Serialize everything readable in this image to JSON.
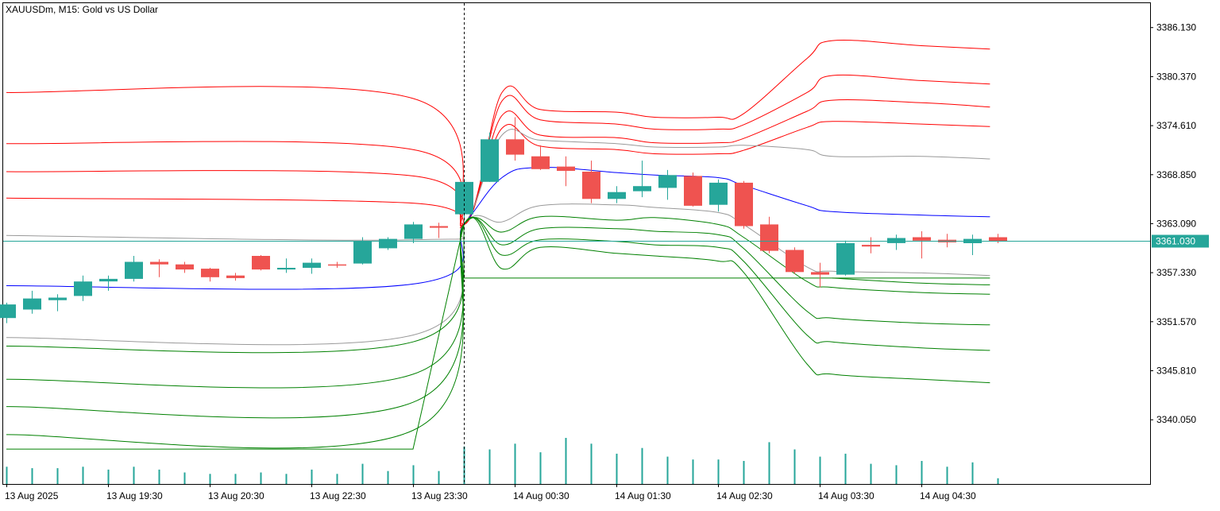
{
  "header": {
    "title": "XAUUSDm, M15:  Gold vs US Dollar"
  },
  "colors": {
    "up": "#26a69a",
    "down": "#ef5350",
    "frame": "#000000",
    "upper_band": "#ff0000",
    "middle_band": "#999999",
    "basis": "#0000ff",
    "lower_band": "#008000",
    "price_line": "#26a69a",
    "volume": "#26a69a",
    "price_label_bg": "#26a69a",
    "price_label_text": "#ffffff"
  },
  "chart_data": {
    "type": "candlestick",
    "symbol": "XAUUSDm",
    "timeframe": "M15",
    "description": "Gold vs US Dollar",
    "y_axis": {
      "ticks": [
        "3386.130",
        "3380.370",
        "3374.610",
        "3368.850",
        "3363.090",
        "3357.330",
        "3351.570",
        "3345.810",
        "3340.050"
      ],
      "range": [
        3332.5,
        3389.0
      ]
    },
    "x_axis": {
      "labels": [
        {
          "text": "13 Aug 2025",
          "index": 0
        },
        {
          "text": "13 Aug 19:30",
          "index": 4
        },
        {
          "text": "13 Aug 20:30",
          "index": 8
        },
        {
          "text": "13 Aug 22:30",
          "index": 12
        },
        {
          "text": "13 Aug 23:30",
          "index": 16
        },
        {
          "text": "14 Aug 00:30",
          "index": 20
        },
        {
          "text": "14 Aug 01:30",
          "index": 24
        },
        {
          "text": "14 Aug 02:30",
          "index": 28
        },
        {
          "text": "14 Aug 03:30",
          "index": 32
        },
        {
          "text": "14 Aug 04:30",
          "index": 36
        }
      ]
    },
    "current_price": "3361.030",
    "current_price_value": 3361.03,
    "vertical_marker_index": 18,
    "candles": [
      {
        "o": 3352.0,
        "h": 3353.8,
        "l": 3351.4,
        "c": 3353.6
      },
      {
        "o": 3353.0,
        "h": 3355.2,
        "l": 3352.5,
        "c": 3354.3
      },
      {
        "o": 3354.1,
        "h": 3354.8,
        "l": 3352.8,
        "c": 3354.4
      },
      {
        "o": 3354.6,
        "h": 3357.0,
        "l": 3354.0,
        "c": 3356.3
      },
      {
        "o": 3356.3,
        "h": 3357.0,
        "l": 3355.2,
        "c": 3356.6
      },
      {
        "o": 3356.6,
        "h": 3359.3,
        "l": 3356.3,
        "c": 3358.6
      },
      {
        "o": 3358.6,
        "h": 3358.9,
        "l": 3356.8,
        "c": 3358.3
      },
      {
        "o": 3358.3,
        "h": 3358.6,
        "l": 3357.3,
        "c": 3357.7
      },
      {
        "o": 3357.8,
        "h": 3357.9,
        "l": 3356.3,
        "c": 3356.8
      },
      {
        "o": 3357.0,
        "h": 3357.3,
        "l": 3356.4,
        "c": 3356.7
      },
      {
        "o": 3359.3,
        "h": 3359.4,
        "l": 3357.6,
        "c": 3357.7
      },
      {
        "o": 3357.7,
        "h": 3359.0,
        "l": 3357.3,
        "c": 3357.9
      },
      {
        "o": 3357.9,
        "h": 3359.0,
        "l": 3357.2,
        "c": 3358.5
      },
      {
        "o": 3358.3,
        "h": 3358.6,
        "l": 3357.9,
        "c": 3358.2
      },
      {
        "o": 3358.4,
        "h": 3361.5,
        "l": 3358.3,
        "c": 3361.0
      },
      {
        "o": 3360.2,
        "h": 3361.5,
        "l": 3360.0,
        "c": 3361.3
      },
      {
        "o": 3361.3,
        "h": 3363.3,
        "l": 3360.8,
        "c": 3363.0
      },
      {
        "o": 3362.8,
        "h": 3363.2,
        "l": 3361.4,
        "c": 3362.6
      },
      {
        "o": 3364.2,
        "h": 3368.4,
        "l": 3363.0,
        "c": 3368.0
      },
      {
        "o": 3368.0,
        "h": 3373.8,
        "l": 3368.0,
        "c": 3373.0
      },
      {
        "o": 3373.0,
        "h": 3375.6,
        "l": 3370.5,
        "c": 3371.2
      },
      {
        "o": 3371.0,
        "h": 3372.3,
        "l": 3369.4,
        "c": 3369.5
      },
      {
        "o": 3369.8,
        "h": 3371.0,
        "l": 3367.5,
        "c": 3369.3
      },
      {
        "o": 3369.2,
        "h": 3370.5,
        "l": 3365.5,
        "c": 3366.0
      },
      {
        "o": 3366.0,
        "h": 3367.5,
        "l": 3365.5,
        "c": 3366.8
      },
      {
        "o": 3366.9,
        "h": 3370.5,
        "l": 3366.2,
        "c": 3367.5
      },
      {
        "o": 3367.3,
        "h": 3369.4,
        "l": 3365.9,
        "c": 3368.8
      },
      {
        "o": 3368.7,
        "h": 3369.1,
        "l": 3365.1,
        "c": 3365.2
      },
      {
        "o": 3365.3,
        "h": 3368.3,
        "l": 3364.5,
        "c": 3367.9
      },
      {
        "o": 3367.9,
        "h": 3368.1,
        "l": 3362.5,
        "c": 3362.8
      },
      {
        "o": 3363.0,
        "h": 3363.9,
        "l": 3359.6,
        "c": 3359.9
      },
      {
        "o": 3360.0,
        "h": 3360.3,
        "l": 3357.2,
        "c": 3357.4
      },
      {
        "o": 3357.4,
        "h": 3358.5,
        "l": 3355.6,
        "c": 3357.1
      },
      {
        "o": 3357.1,
        "h": 3361.1,
        "l": 3357.0,
        "c": 3360.8
      },
      {
        "o": 3360.6,
        "h": 3361.5,
        "l": 3359.6,
        "c": 3360.4
      },
      {
        "o": 3360.8,
        "h": 3361.8,
        "l": 3360.0,
        "c": 3361.4
      },
      {
        "o": 3361.5,
        "h": 3362.2,
        "l": 3359.0,
        "c": 3361.1
      },
      {
        "o": 3361.2,
        "h": 3361.9,
        "l": 3360.3,
        "c": 3360.9
      },
      {
        "o": 3360.8,
        "h": 3361.8,
        "l": 3359.4,
        "c": 3361.3
      },
      {
        "o": 3361.5,
        "h": 3361.9,
        "l": 3360.8,
        "c": 3361.0
      }
    ],
    "volumes": [
      0.6,
      0.55,
      0.55,
      0.6,
      0.5,
      0.6,
      0.5,
      0.4,
      0.35,
      0.35,
      0.4,
      0.35,
      0.5,
      0.35,
      0.7,
      0.45,
      0.65,
      0.45,
      1.3,
      1.2,
      1.4,
      1.1,
      1.6,
      1.4,
      1.05,
      1.25,
      0.95,
      0.85,
      0.85,
      0.8,
      1.45,
      1.2,
      0.95,
      1.05,
      0.7,
      0.65,
      0.8,
      0.6,
      0.75,
      0.2
    ],
    "band_x_index": [
      0,
      16,
      18,
      19.5,
      21,
      24,
      25.5,
      28,
      29,
      31.5,
      32.5,
      36,
      38.7
    ],
    "bands": [
      {
        "role": "upper",
        "values": [
          3378.5,
          3377.8,
          3363.0,
          3378.5,
          3376.5,
          3376.2,
          3375.6,
          3375.6,
          3376.0,
          3382.5,
          3384.6,
          3384.0,
          3383.6
        ]
      },
      {
        "role": "upper",
        "values": [
          3372.5,
          3371.8,
          3363.0,
          3377.5,
          3375.3,
          3374.8,
          3374.2,
          3374.2,
          3374.7,
          3378.5,
          3380.5,
          3379.9,
          3379.5
        ]
      },
      {
        "role": "upper",
        "values": [
          3369.2,
          3368.7,
          3363.0,
          3375.8,
          3373.5,
          3373.2,
          3372.6,
          3372.6,
          3373.1,
          3376.3,
          3377.6,
          3377.3,
          3376.8
        ]
      },
      {
        "role": "upper",
        "values": [
          3366.1,
          3365.5,
          3363.0,
          3374.3,
          3372.2,
          3371.8,
          3371.3,
          3371.3,
          3371.7,
          3374.4,
          3375.1,
          3374.8,
          3374.5
        ]
      },
      {
        "role": "middle",
        "values": [
          3361.7,
          3361.2,
          3363.0,
          3373.5,
          3372.9,
          3372.5,
          3372.1,
          3372.1,
          3372.3,
          3371.8,
          3371.0,
          3371.0,
          3370.7
        ]
      },
      {
        "role": "basis",
        "values": [
          3355.8,
          3356.0,
          3363.0,
          3368.5,
          3369.7,
          3369.1,
          3368.8,
          3368.5,
          3367.6,
          3365.2,
          3364.5,
          3364.1,
          3363.9
        ]
      },
      {
        "role": "middle",
        "values": [
          3349.7,
          3350.0,
          3363.0,
          3363.3,
          3365.2,
          3365.3,
          3365.0,
          3364.4,
          3363.0,
          3358.0,
          3357.5,
          3357.3,
          3357.0
        ]
      },
      {
        "role": "lower",
        "values": [
          3348.7,
          3349.2,
          3363.0,
          3362.1,
          3363.9,
          3363.5,
          3363.8,
          3363.0,
          3361.5,
          3356.3,
          3355.6,
          3355.0,
          3354.8
        ]
      },
      {
        "role": "lower",
        "values": [
          3344.8,
          3345.4,
          3363.0,
          3360.6,
          3362.5,
          3362.5,
          3362.2,
          3361.8,
          3360.2,
          3352.8,
          3352.0,
          3351.4,
          3351.2
        ]
      },
      {
        "role": "lower",
        "values": [
          3341.6,
          3342.1,
          3363.0,
          3359.4,
          3361.2,
          3361.0,
          3360.6,
          3360.3,
          3358.7,
          3350.0,
          3349.2,
          3348.5,
          3348.2
        ]
      },
      {
        "role": "lower",
        "values": [
          3338.3,
          3338.8,
          3363.0,
          3357.8,
          3360.3,
          3359.6,
          3359.3,
          3358.7,
          3357.4,
          3346.6,
          3345.4,
          3344.8,
          3344.4
        ]
      }
    ],
    "lower_step": {
      "role": "lower",
      "x_index": [
        0,
        16,
        18,
        18.0,
        38.7
      ],
      "values": [
        3336.6,
        3336.6,
        3363.0,
        3356.7,
        3356.7
      ]
    },
    "basis_tail": {
      "role": "lower",
      "x_index": [
        32.5,
        36,
        38.7
      ],
      "values": [
        3356.7,
        3356.1,
        3355.9
      ]
    }
  }
}
